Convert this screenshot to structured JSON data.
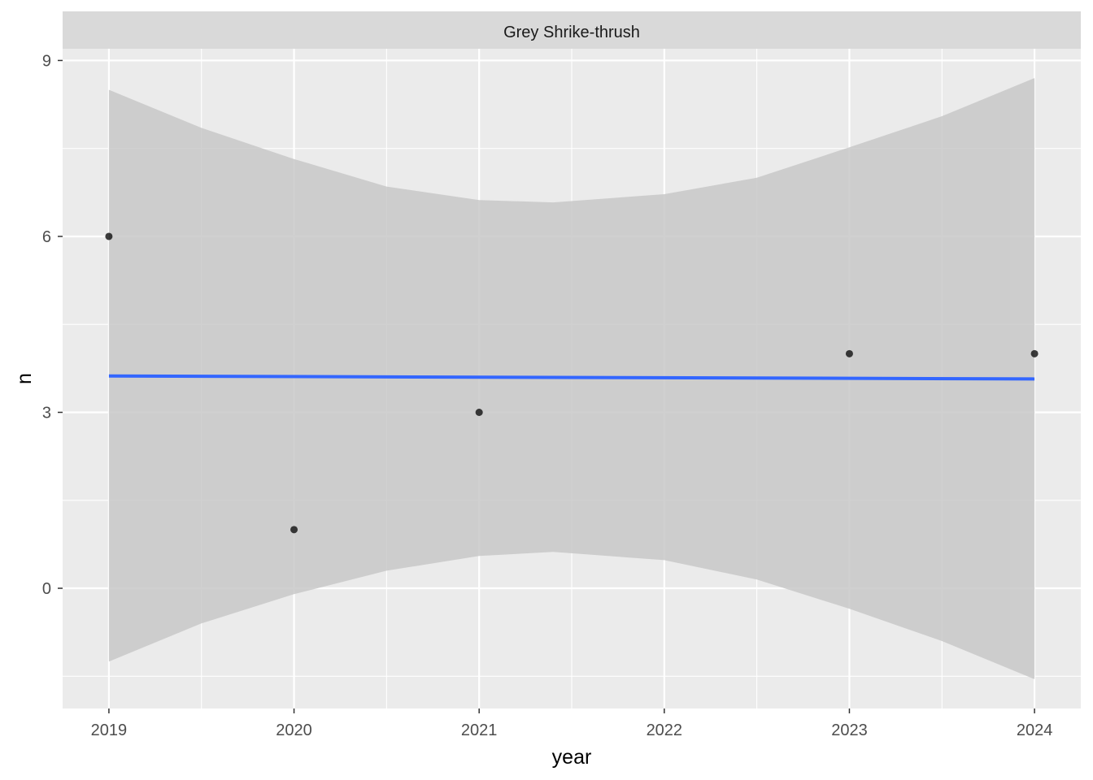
{
  "chart_data": {
    "type": "scatter",
    "facet_title": "Grey Shrike-thrush",
    "xlabel": "year",
    "ylabel": "n",
    "x_ticks": [
      2019,
      2020,
      2021,
      2022,
      2023,
      2024
    ],
    "y_ticks": [
      0,
      3,
      6,
      9
    ],
    "xlim": [
      2018.75,
      2024.25
    ],
    "ylim": [
      -2.05,
      9.2
    ],
    "points": [
      {
        "x": 2019,
        "y": 6
      },
      {
        "x": 2020,
        "y": 1
      },
      {
        "x": 2021,
        "y": 3
      },
      {
        "x": 2023,
        "y": 4
      },
      {
        "x": 2024,
        "y": 4
      }
    ],
    "smooth": {
      "method": "linear",
      "line": [
        {
          "x": 2019,
          "y": 3.62
        },
        {
          "x": 2024,
          "y": 3.57
        }
      ],
      "ribbon": [
        {
          "x": 2019,
          "lower": -1.25,
          "upper": 8.5
        },
        {
          "x": 2019.5,
          "lower": -0.6,
          "upper": 7.85
        },
        {
          "x": 2020,
          "lower": -0.1,
          "upper": 7.32
        },
        {
          "x": 2020.5,
          "lower": 0.3,
          "upper": 6.85
        },
        {
          "x": 2021,
          "lower": 0.55,
          "upper": 6.62
        },
        {
          "x": 2021.4,
          "lower": 0.62,
          "upper": 6.58
        },
        {
          "x": 2022,
          "lower": 0.48,
          "upper": 6.72
        },
        {
          "x": 2022.5,
          "lower": 0.15,
          "upper": 7.0
        },
        {
          "x": 2023,
          "lower": -0.35,
          "upper": 7.52
        },
        {
          "x": 2023.5,
          "lower": -0.9,
          "upper": 8.05
        },
        {
          "x": 2024,
          "lower": -1.55,
          "upper": 8.7
        }
      ]
    },
    "grid": true,
    "colors": {
      "panel_background": "#ebebeb",
      "grid_major": "#ffffff",
      "strip_background": "#d9d9d9",
      "ribbon": "#c8c8c8",
      "line": "#3366ff",
      "point": "#1a1a1a"
    }
  }
}
